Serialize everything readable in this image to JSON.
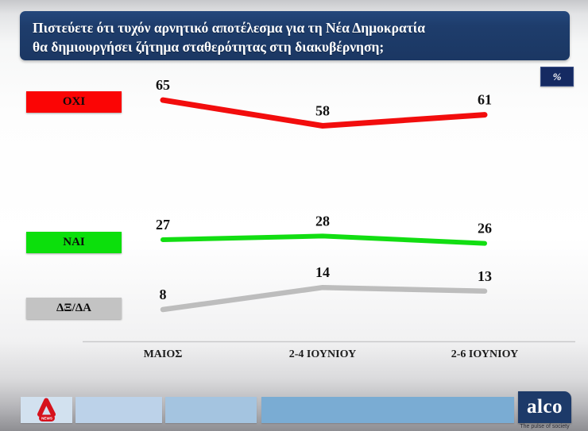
{
  "header": {
    "title": "Πιστεύετε ότι τυχόν αρνητικό αποτέλεσμα για τη Νέα Δημοκρατία\nθα δημιουργήσει ζήτημα σταθερότητας στη διακυβέρνηση;"
  },
  "percent_badge": "%",
  "chart_data": {
    "type": "line",
    "title": "Πιστεύετε ότι τυχόν αρνητικό αποτέλεσμα για τη Νέα Δημοκρατία θα δημιουργήσει ζήτημα σταθερότητας στη διακυβέρνηση;",
    "unit": "%",
    "categories": [
      "ΜΑΙΟΣ",
      "2-4 ΙΟΥΝΙΟΥ",
      "2-6 ΙΟΥΝΙΟΥ"
    ],
    "series": [
      {
        "name": "ΟΧΙ",
        "values": [
          65,
          58,
          61
        ],
        "line_color": "#f20d0d",
        "box_color": "#fb0505"
      },
      {
        "name": "ΝΑΙ",
        "values": [
          27,
          28,
          26
        ],
        "line_color": "#12de12",
        "box_color": "#0cdf0c"
      },
      {
        "name": "ΔΞ/ΔΑ",
        "values": [
          8,
          14,
          13
        ],
        "line_color": "#bdbdbd",
        "box_color": "#c3c3c3"
      }
    ],
    "ylim": [
      0,
      75
    ],
    "grid": false,
    "legend_position": "left",
    "data_labels": true
  },
  "footer": {
    "alpha_news_label": "NEWS",
    "alco_logo": "alco",
    "alco_tagline": "The pulse of society"
  }
}
